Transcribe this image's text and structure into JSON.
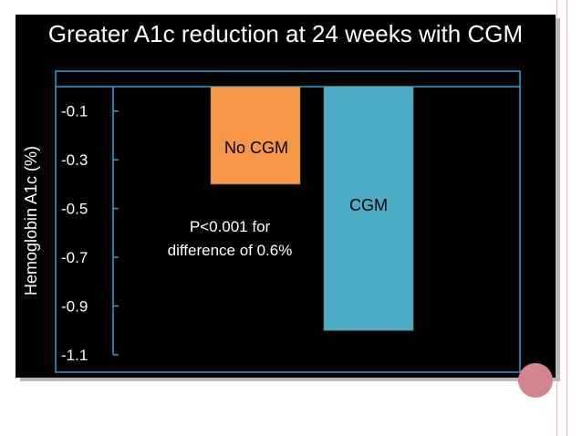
{
  "slide": {
    "title": "Greater A1c reduction at 24 weeks with CGM",
    "colors": {
      "background": "#000000",
      "frame": "#2a9fd6",
      "no_cgm": "#f79646",
      "cgm": "#4bacc6",
      "text": "#ffffff",
      "accent_circle": "#d4848f",
      "edge_lines": "#e8b4c0"
    }
  },
  "chart_data": {
    "type": "bar",
    "title": "Greater A1c reduction at 24 weeks with CGM",
    "ylabel": "Hemoglobin A1c (%)",
    "xlabel": "",
    "categories": [
      "No CGM",
      "CGM"
    ],
    "values": [
      -0.4,
      -1.0
    ],
    "ylim": [
      -1.1,
      0.0
    ],
    "yticks": [
      -0.1,
      -0.3,
      -0.5,
      -0.7,
      -0.9,
      -1.1
    ],
    "ytick_labels": [
      "-0.1",
      "-0.3",
      "-0.5",
      "-0.7",
      "-0.9",
      "-1.1"
    ],
    "annotation": [
      "P<0.001 for",
      "difference of 0.6%"
    ],
    "grid": false,
    "legend": "none"
  }
}
